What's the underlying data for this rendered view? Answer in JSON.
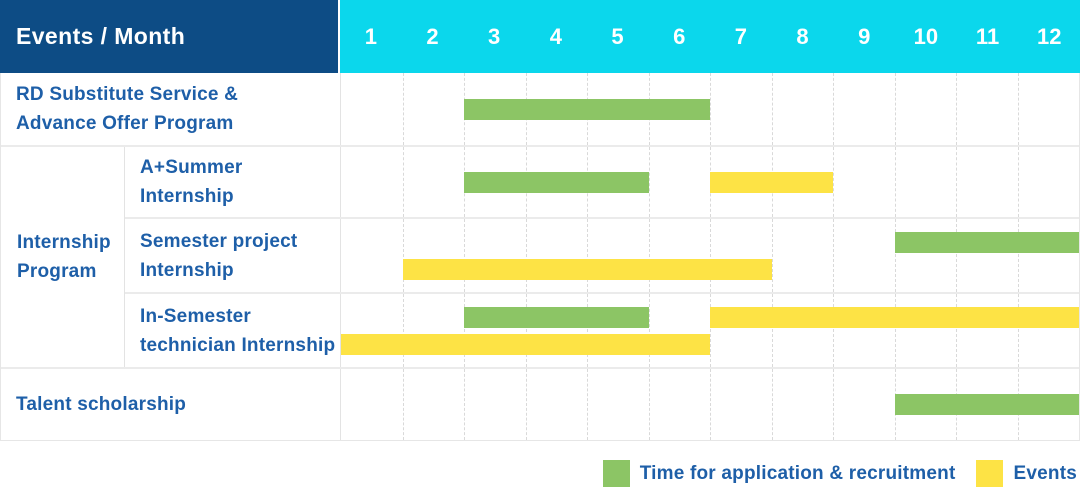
{
  "header": {
    "title": "Events / Month",
    "months": [
      "1",
      "2",
      "3",
      "4",
      "5",
      "6",
      "7",
      "8",
      "9",
      "10",
      "11",
      "12"
    ]
  },
  "groups": [
    {
      "label": "",
      "rows": [
        {
          "label": "RD Substitute Service &\nAdvance Offer Program",
          "bars": [
            {
              "kind": "application",
              "color_key": "green",
              "start_month": 3,
              "end_month": 6,
              "line": "single"
            }
          ]
        }
      ]
    },
    {
      "label": "Internship\nProgram",
      "rows": [
        {
          "label": "A+Summer\nInternship",
          "bars": [
            {
              "kind": "application",
              "color_key": "green",
              "start_month": 3,
              "end_month": 5,
              "line": "single"
            },
            {
              "kind": "events",
              "color_key": "yellow",
              "start_month": 7,
              "end_month": 8,
              "line": "single"
            }
          ]
        },
        {
          "label": "Semester project\nInternship",
          "bars": [
            {
              "kind": "application",
              "color_key": "green",
              "start_month": 10,
              "end_month": 12,
              "line": "top"
            },
            {
              "kind": "events",
              "color_key": "yellow",
              "start_month": 2,
              "end_month": 7,
              "line": "bottom"
            }
          ]
        },
        {
          "label": "In-Semester\ntechnician Internship",
          "bars": [
            {
              "kind": "application",
              "color_key": "green",
              "start_month": 3,
              "end_month": 5,
              "line": "top"
            },
            {
              "kind": "events",
              "color_key": "yellow",
              "start_month": 7,
              "end_month": 12,
              "line": "top"
            },
            {
              "kind": "events",
              "color_key": "yellow",
              "start_month": 1,
              "end_month": 6,
              "line": "bottom"
            }
          ]
        }
      ]
    },
    {
      "label": "",
      "rows": [
        {
          "label": "Talent scholarship",
          "bars": [
            {
              "kind": "application",
              "color_key": "green",
              "start_month": 10,
              "end_month": 12,
              "line": "single"
            }
          ]
        }
      ]
    }
  ],
  "legend": {
    "items": [
      {
        "label": "Time for application & recruitment",
        "color_key": "green"
      },
      {
        "label": "Events",
        "color_key": "yellow"
      }
    ]
  },
  "colors": {
    "header_bg": "#0d4c85",
    "month_header_bg": "#0bd7ec",
    "header_text": "#ffffff",
    "label_text": "#1e5fa8",
    "green": "#8cc565",
    "yellow": "#fde345"
  },
  "chart_data": {
    "type": "table",
    "title": "Events / Month",
    "x_axis": {
      "label": "Month",
      "ticks": [
        1,
        2,
        3,
        4,
        5,
        6,
        7,
        8,
        9,
        10,
        11,
        12
      ],
      "range": [
        1,
        12
      ]
    },
    "grid": "dashed-vertical-month-lines",
    "legend_position": "bottom-right",
    "legend": [
      {
        "label": "Time for application & recruitment",
        "color": "#8cc565"
      },
      {
        "label": "Events",
        "color": "#fde345"
      }
    ],
    "rows": [
      {
        "group": null,
        "label": "RD Substitute Service & Advance Offer Program",
        "bars": [
          {
            "series": "Time for application & recruitment",
            "start_month": 3,
            "end_month": 6
          }
        ]
      },
      {
        "group": "Internship Program",
        "label": "A+Summer Internship",
        "bars": [
          {
            "series": "Time for application & recruitment",
            "start_month": 3,
            "end_month": 5
          },
          {
            "series": "Events",
            "start_month": 7,
            "end_month": 8
          }
        ]
      },
      {
        "group": "Internship Program",
        "label": "Semester project Internship",
        "bars": [
          {
            "series": "Time for application & recruitment",
            "start_month": 10,
            "end_month": 12
          },
          {
            "series": "Events",
            "start_month": 2,
            "end_month": 7
          }
        ]
      },
      {
        "group": "Internship Program",
        "label": "In-Semester technician Internship",
        "bars": [
          {
            "series": "Time for application & recruitment",
            "start_month": 3,
            "end_month": 5
          },
          {
            "series": "Events",
            "start_month": 7,
            "end_month": 12
          },
          {
            "series": "Events",
            "start_month": 1,
            "end_month": 6
          }
        ]
      },
      {
        "group": null,
        "label": "Talent scholarship",
        "bars": [
          {
            "series": "Time for application & recruitment",
            "start_month": 10,
            "end_month": 12
          }
        ]
      }
    ]
  }
}
